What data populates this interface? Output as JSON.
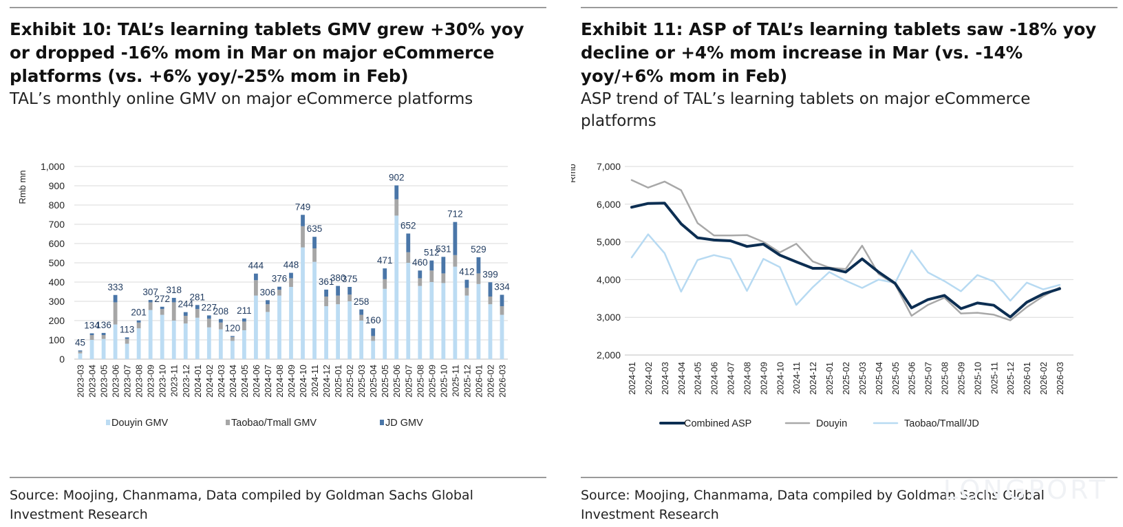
{
  "left": {
    "title": "Exhibit 10: TAL’s learning tablets GMV grew +30% yoy or dropped -16% mom in Mar on major eCommerce platforms (vs. +6% yoy/-25% mom in Feb)",
    "subtitle": "TAL’s monthly online GMV on major eCommerce platforms",
    "source": "Source: Moojing, Chanmama, Data compiled by Goldman Sachs Global Investment Research"
  },
  "right": {
    "title": "Exhibit 11: ASP of TAL’s learning tablets saw -18% yoy decline or +4% mom increase in Mar (vs. -14% yoy/+6% mom in Feb)",
    "subtitle": "ASP trend of TAL’s learning tablets on major eCommerce platforms",
    "source": "Source: Moojing, Chanmama, Data compiled by Goldman Sachs Global Investment Research"
  },
  "watermark": "LONGPORT",
  "chart_data": [
    {
      "type": "bar",
      "stacked": true,
      "ylabel": "Rmb mn",
      "ylim": [
        0,
        1000
      ],
      "yticks": [
        "0",
        "100",
        "200",
        "300",
        "400",
        "500",
        "600",
        "700",
        "800",
        "900",
        "1,000"
      ],
      "grid": true,
      "legend_position": "bottom",
      "categories": [
        "2023-03",
        "2023-04",
        "2023-05",
        "2023-06",
        "2023-07",
        "2023-08",
        "2023-09",
        "2023-10",
        "2023-11",
        "2023-12",
        "2024-01",
        "2024-02",
        "2024-03",
        "2024-04",
        "2024-05",
        "2024-06",
        "2024-07",
        "2024-08",
        "2024-09",
        "2024-10",
        "2024-11",
        "2024-12",
        "2025-01",
        "2025-02",
        "2025-03",
        "2025-04",
        "2025-05",
        "2025-06",
        "2025-07",
        "2025-08",
        "2025-09",
        "2025-10",
        "2025-11",
        "2025-12",
        "2026-01",
        "2026-02",
        "2026-03"
      ],
      "totals": [
        45,
        134,
        136,
        333,
        113,
        201,
        307,
        272,
        318,
        244,
        281,
        227,
        208,
        120,
        211,
        444,
        306,
        376,
        448,
        749,
        635,
        361,
        380,
        375,
        258,
        160,
        471,
        902,
        652,
        460,
        512,
        531,
        712,
        412,
        529,
        399,
        334
      ],
      "series": [
        {
          "name": "Douyin GMV",
          "color": "#bcdcf3",
          "values": [
            30,
            100,
            105,
            180,
            80,
            160,
            255,
            230,
            200,
            185,
            215,
            165,
            155,
            95,
            150,
            330,
            245,
            330,
            375,
            580,
            505,
            275,
            285,
            300,
            200,
            95,
            365,
            745,
            500,
            380,
            400,
            395,
            480,
            330,
            390,
            285,
            230
          ]
        },
        {
          "name": "Taobao/Tmall GMV",
          "color": "#a6a6a6",
          "values": [
            10,
            25,
            20,
            115,
            25,
            30,
            40,
            30,
            95,
            40,
            45,
            45,
            35,
            20,
            45,
            80,
            40,
            30,
            45,
            110,
            70,
            50,
            45,
            35,
            30,
            25,
            50,
            85,
            55,
            40,
            60,
            50,
            60,
            40,
            55,
            40,
            45
          ]
        },
        {
          "name": "JD GMV",
          "color": "#4a76a8",
          "values": [
            5,
            9,
            11,
            38,
            8,
            11,
            12,
            12,
            23,
            19,
            21,
            17,
            18,
            5,
            16,
            34,
            21,
            16,
            28,
            59,
            60,
            36,
            50,
            40,
            28,
            40,
            56,
            72,
            97,
            40,
            52,
            86,
            172,
            42,
            84,
            74,
            59
          ]
        }
      ]
    },
    {
      "type": "line",
      "ylabel": "Rmb",
      "ylim": [
        2000,
        7000
      ],
      "yticks": [
        "2,000",
        "3,000",
        "4,000",
        "5,000",
        "6,000",
        "7,000"
      ],
      "grid": true,
      "legend_position": "bottom",
      "x": [
        "2024-01",
        "2024-02",
        "2024-03",
        "2024-04",
        "2024-05",
        "2024-06",
        "2024-07",
        "2024-08",
        "2024-09",
        "2024-10",
        "2024-11",
        "2024-12",
        "2025-01",
        "2025-02",
        "2025-03",
        "2025-04",
        "2025-05",
        "2025-06",
        "2025-07",
        "2025-08",
        "2025-09",
        "2025-10",
        "2025-11",
        "2025-12",
        "2026-01",
        "2026-02",
        "2026-03"
      ],
      "series": [
        {
          "name": "Combined ASP",
          "color": "#0c2e52",
          "width": 4,
          "values": [
            5920,
            6020,
            6030,
            5480,
            5110,
            5050,
            5030,
            4880,
            4940,
            4650,
            4470,
            4300,
            4300,
            4200,
            4550,
            4200,
            3900,
            3250,
            3470,
            3580,
            3230,
            3380,
            3320,
            3010,
            3400,
            3620,
            3760
          ]
        },
        {
          "name": "Douyin",
          "color": "#a8a8a8",
          "width": 2.5,
          "values": [
            6640,
            6440,
            6600,
            6370,
            5500,
            5170,
            5170,
            5180,
            5000,
            4720,
            4950,
            4480,
            4320,
            4280,
            4900,
            4150,
            3880,
            3040,
            3330,
            3520,
            3100,
            3120,
            3070,
            2920,
            3270,
            3560,
            3790
          ]
        },
        {
          "name": "Taobao/Tmall/JD",
          "color": "#b7daf2",
          "width": 2.5,
          "values": [
            4590,
            5200,
            4700,
            3680,
            4520,
            4650,
            4550,
            3700,
            4550,
            4330,
            3330,
            3800,
            4200,
            3970,
            3780,
            4000,
            3910,
            4780,
            4190,
            3960,
            3690,
            4120,
            3950,
            3440,
            3920,
            3740,
            3860
          ]
        }
      ]
    }
  ]
}
